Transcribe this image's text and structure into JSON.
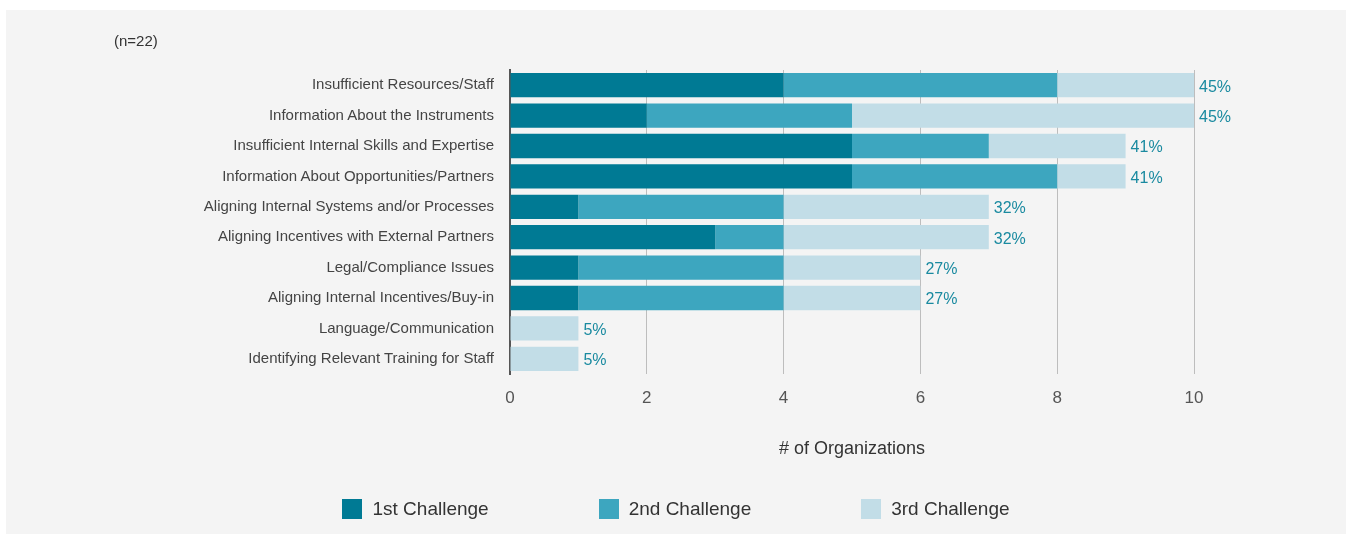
{
  "chart_data": {
    "type": "bar",
    "orientation": "horizontal",
    "stacked": true,
    "categories": [
      "Insufficient Resources/Staff",
      "Information About the Instruments",
      "Insufficient Internal Skills and Expertise",
      "Information About Opportunities/Partners",
      "Aligning Internal Systems and/or Processes",
      "Aligning Incentives with External Partners",
      "Legal/Compliance Issues",
      "Aligning Internal Incentives/Buy-in",
      "Language/Communication",
      "Identifying Relevant Training for Staff"
    ],
    "series": [
      {
        "name": "1st Challenge",
        "color": "#007a94",
        "values": [
          4,
          2,
          5,
          5,
          1,
          3,
          1,
          1,
          0,
          0
        ]
      },
      {
        "name": "2nd Challenge",
        "color": "#3da6bf",
        "values": [
          4,
          3,
          2,
          3,
          3,
          1,
          3,
          3,
          0,
          0
        ]
      },
      {
        "name": "3rd Challenge",
        "color": "#c2dde7",
        "values": [
          2,
          5,
          2,
          1,
          3,
          3,
          2,
          2,
          1,
          1
        ]
      }
    ],
    "xlim": [
      0,
      10
    ],
    "xticks": [
      0,
      2,
      4,
      6,
      8,
      10
    ],
    "xlabel": "# of Organizations",
    "annotations": [
      "(n=22)",
      {
        "text": "45%",
        "x": 10,
        "y": "Insufficient Resources/Staff"
      },
      {
        "text": "45%",
        "x": 10,
        "y": "Information About the Instruments"
      },
      {
        "text": "41%",
        "x": 9,
        "y": "Insufficient Internal Skills and Expertise"
      },
      {
        "text": "41%",
        "x": 9,
        "y": "Information About Opportunities/Partners"
      },
      {
        "text": "32%",
        "x": 7,
        "y": "Aligning Internal Systems and/or Processes"
      },
      {
        "text": "32%",
        "x": 7,
        "y": "Aligning Incentives with External Partners"
      },
      {
        "text": "27%",
        "x": 6,
        "y": "Legal/Compliance Issues"
      },
      {
        "text": "27%",
        "x": 6,
        "y": "Aligning Internal Incentives/Buy-in"
      },
      {
        "text": "5%",
        "x": 1,
        "y": "Language/Communication"
      },
      {
        "text": "5%",
        "x": 1,
        "y": "Identifying Relevant Training for Staff"
      }
    ],
    "grid": "x",
    "legend": "bottom"
  }
}
